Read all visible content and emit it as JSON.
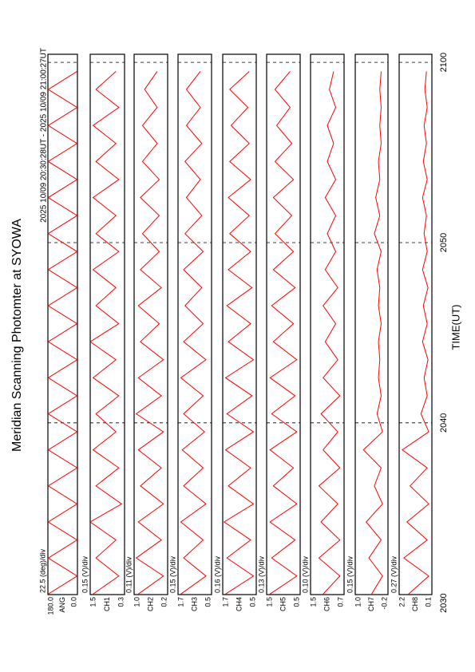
{
  "chart_data": {
    "type": "line",
    "title": "Meridian Scanning Photomter at SYOWA",
    "subtitle": "2025 10/09 20:30:28UT - 2025 10/09 21:00:27UT",
    "x_label": "TIME(UT)",
    "xlim": [
      30.47,
      60.45
    ],
    "xticks": [
      {
        "value": 30,
        "label": "2030"
      },
      {
        "value": 40,
        "label": "2040"
      },
      {
        "value": 50,
        "label": "2050"
      },
      {
        "value": 60,
        "label": "2100"
      }
    ],
    "x": [
      30.5,
      31.5,
      32.5,
      33.5,
      34.5,
      35.5,
      36.5,
      37.5,
      38.5,
      39.5,
      40.5,
      41.5,
      42.5,
      43.5,
      44.5,
      45.5,
      46.5,
      47.5,
      48.5,
      49.5,
      50.5,
      51.5,
      52.5,
      53.5,
      54.5,
      55.5,
      56.5,
      57.5,
      58.5,
      59.5
    ],
    "color": "#ff0000",
    "panels": [
      {
        "channel": "ANG",
        "scale_label": "22.5 (deg)/div",
        "ylim": [
          0,
          180
        ],
        "yticks": [
          {
            "value": 0,
            "label": "0.0"
          },
          {
            "value": 180,
            "label": "180.0"
          }
        ],
        "values": [
          178,
          2,
          178,
          2,
          178,
          2,
          178,
          2,
          178,
          2,
          178,
          2,
          178,
          2,
          178,
          2,
          178,
          2,
          178,
          2,
          178,
          2,
          178,
          2,
          178,
          2,
          178,
          2,
          178,
          2
        ]
      },
      {
        "channel": "CH1",
        "scale_label": "0.15 (V)/div",
        "ylim": [
          0.3,
          1.5
        ],
        "yticks": [
          0.3,
          1.5
        ],
        "values": [
          1.4,
          0.5,
          1.3,
          0.6,
          1.5,
          0.4,
          1.3,
          0.5,
          1.4,
          0.6,
          1.3,
          0.5,
          1.4,
          0.6,
          1.5,
          0.5,
          1.3,
          0.6,
          1.4,
          0.5,
          1.3,
          0.6,
          1.4,
          0.5,
          1.3,
          0.6,
          1.4,
          0.5,
          1.3,
          0.6
        ]
      },
      {
        "channel": "CH2",
        "scale_label": "0.11 (V)/div",
        "ylim": [
          0.2,
          1.0
        ],
        "yticks": [
          0.2,
          {
            "value": 1,
            "label": "1.0"
          }
        ],
        "values": [
          0.9,
          0.3,
          0.95,
          0.35,
          0.9,
          0.3,
          0.85,
          0.35,
          0.9,
          0.3,
          0.95,
          0.35,
          0.9,
          0.3,
          0.85,
          0.4,
          0.9,
          0.35,
          0.85,
          0.4,
          0.8,
          0.4,
          0.85,
          0.4,
          0.8,
          0.45,
          0.8,
          0.45,
          0.75,
          0.45
        ]
      },
      {
        "channel": "CH3",
        "scale_label": "0.15 (V)/div",
        "ylim": [
          0.5,
          1.7
        ],
        "yticks": [
          0.5,
          1.7
        ],
        "values": [
          1.6,
          0.7,
          1.5,
          0.8,
          1.6,
          0.7,
          1.5,
          0.8,
          1.55,
          0.75,
          1.5,
          0.8,
          1.6,
          0.7,
          1.5,
          0.8,
          1.45,
          0.85,
          1.5,
          0.8,
          1.45,
          0.85,
          1.4,
          0.9,
          1.45,
          0.85,
          1.4,
          0.9,
          1.4,
          0.9
        ]
      },
      {
        "channel": "CH4",
        "scale_label": "0.16 (V)/div",
        "ylim": [
          0.5,
          1.7
        ],
        "yticks": [
          0.5,
          1.7
        ],
        "values": [
          1.6,
          0.6,
          1.55,
          0.7,
          1.65,
          0.6,
          1.5,
          0.7,
          1.6,
          0.6,
          1.55,
          0.65,
          1.6,
          0.6,
          1.5,
          0.7,
          1.55,
          0.65,
          1.5,
          0.7,
          1.45,
          0.75,
          1.5,
          0.7,
          1.45,
          0.75,
          1.4,
          0.8,
          1.45,
          0.75
        ]
      },
      {
        "channel": "CH5",
        "scale_label": "0.13 (V)/div",
        "ylim": [
          0.5,
          1.5
        ],
        "yticks": [
          0.5,
          1.5
        ],
        "values": [
          1.4,
          0.6,
          1.35,
          0.65,
          1.4,
          0.6,
          1.3,
          0.7,
          1.4,
          0.6,
          1.35,
          0.65,
          1.4,
          0.6,
          1.3,
          0.7,
          1.35,
          0.65,
          1.3,
          0.7,
          1.25,
          0.75,
          1.3,
          0.7,
          1.25,
          0.75,
          1.2,
          0.8,
          1.25,
          0.8
        ]
      },
      {
        "channel": "CH6",
        "scale_label": "0.10 (V)/div",
        "ylim": [
          0.7,
          1.5
        ],
        "yticks": [
          0.7,
          1.5
        ],
        "values": [
          1.2,
          0.8,
          1.3,
          0.8,
          1.25,
          0.85,
          1.3,
          0.8,
          1.2,
          0.85,
          1.25,
          0.8,
          1.2,
          0.85,
          1.15,
          0.9,
          1.2,
          0.85,
          1.15,
          0.9,
          1.1,
          0.9,
          1.15,
          0.9,
          1.1,
          0.95,
          1.1,
          0.9,
          1.05,
          0.95
        ]
      },
      {
        "channel": "CH7",
        "scale_label": "0.15 (V)/div",
        "ylim": [
          -0.2,
          1.0
        ],
        "yticks": [
          -0.2,
          {
            "value": 1,
            "label": "1.0"
          }
        ],
        "values": [
          0.4,
          0.0,
          0.5,
          0.05,
          0.6,
          0.0,
          0.3,
          0.05,
          0.7,
          0.0,
          0.2,
          0.05,
          0.15,
          0.1,
          0.15,
          0.05,
          0.15,
          0.1,
          0.2,
          0.05,
          0.3,
          0.1,
          0.25,
          0.1,
          0.15,
          0.05,
          0.1,
          0.05,
          0.1,
          0.05
        ]
      },
      {
        "channel": "CH8",
        "scale_label": "0.27 (V)/div",
        "ylim": [
          0.1,
          2.2
        ],
        "yticks": [
          0.1,
          2.2
        ],
        "values": [
          1.6,
          0.3,
          1.9,
          0.4,
          1.7,
          0.3,
          1.5,
          0.4,
          2.0,
          0.3,
          0.8,
          0.4,
          0.6,
          0.35,
          0.7,
          0.4,
          0.65,
          0.35,
          0.7,
          0.4,
          0.6,
          0.45,
          0.7,
          0.4,
          0.65,
          0.45,
          0.6,
          0.4,
          0.55,
          0.45
        ]
      }
    ]
  }
}
